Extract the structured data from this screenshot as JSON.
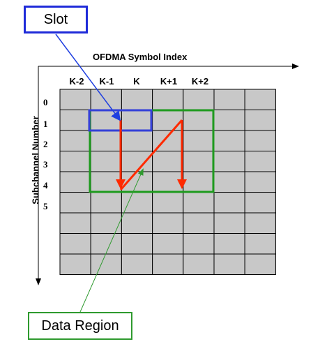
{
  "labels": {
    "slot": "Slot",
    "data_region": "Data Region",
    "x_axis": "OFDMA Symbol Index",
    "y_axis": "Subchannel Number"
  },
  "columns": [
    "K-2",
    "K-1",
    "K",
    "K+1",
    "K+2"
  ],
  "rows": [
    "0",
    "1",
    "2",
    "3",
    "4",
    "5"
  ],
  "colors": {
    "grid_fill": "#c8c8c8",
    "slot": "#3440d8",
    "data_region": "#1e9a1e",
    "path": "#ff2a00"
  }
}
